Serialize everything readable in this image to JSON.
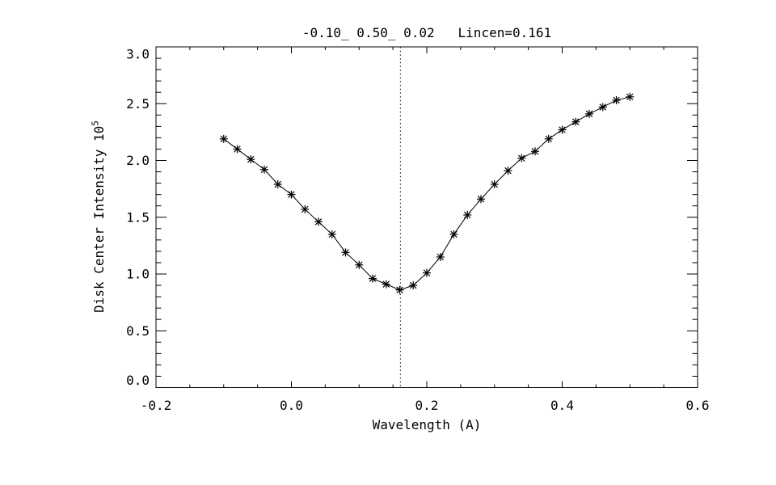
{
  "chart_data": {
    "type": "line",
    "title": "-0.10_ 0.50_ 0.02   Lincen=0.161",
    "xlabel": "Wavelength (A)",
    "ylabel": "Disk Center Intensity 10",
    "ylabel_exponent": "5",
    "xlim": [
      -0.2,
      0.6
    ],
    "ylim": [
      0.0,
      3.0
    ],
    "x_major_ticks": [
      -0.2,
      0.0,
      0.2,
      0.4,
      0.6
    ],
    "x_tick_labels": [
      "-0.2",
      "0.0",
      "0.2",
      "0.4",
      "0.6"
    ],
    "x_minor_step": 0.05,
    "y_major_ticks": [
      0.0,
      0.5,
      1.0,
      1.5,
      2.0,
      2.5,
      3.0
    ],
    "y_tick_labels": [
      "0.0",
      "0.5",
      "1.0",
      "1.5",
      "2.0",
      "2.5",
      "3.0"
    ],
    "y_minor_step": 0.1,
    "grid": "off",
    "legend": "none",
    "marker": "asterisk",
    "line_color": "#000000",
    "background_color": "#ffffff",
    "vline": {
      "x": 0.161,
      "style": "dotted",
      "meaning": "line center Lincen=0.161"
    },
    "series": [
      {
        "name": "disk-center-intensity-profile",
        "x": [
          -0.1,
          -0.08,
          -0.06,
          -0.04,
          -0.02,
          0.0,
          0.02,
          0.04,
          0.06,
          0.08,
          0.1,
          0.12,
          0.14,
          0.16,
          0.18,
          0.2,
          0.22,
          0.24,
          0.26,
          0.28,
          0.3,
          0.32,
          0.34,
          0.36,
          0.38,
          0.4,
          0.42,
          0.44,
          0.46,
          0.48,
          0.5
        ],
        "y": [
          2.19,
          2.1,
          2.01,
          1.92,
          1.79,
          1.7,
          1.57,
          1.46,
          1.35,
          1.19,
          1.08,
          0.96,
          0.91,
          0.86,
          0.9,
          1.01,
          1.15,
          1.35,
          1.52,
          1.66,
          1.79,
          1.91,
          2.02,
          2.08,
          2.19,
          2.27,
          2.34,
          2.41,
          2.47,
          2.53,
          2.56
        ]
      }
    ]
  }
}
